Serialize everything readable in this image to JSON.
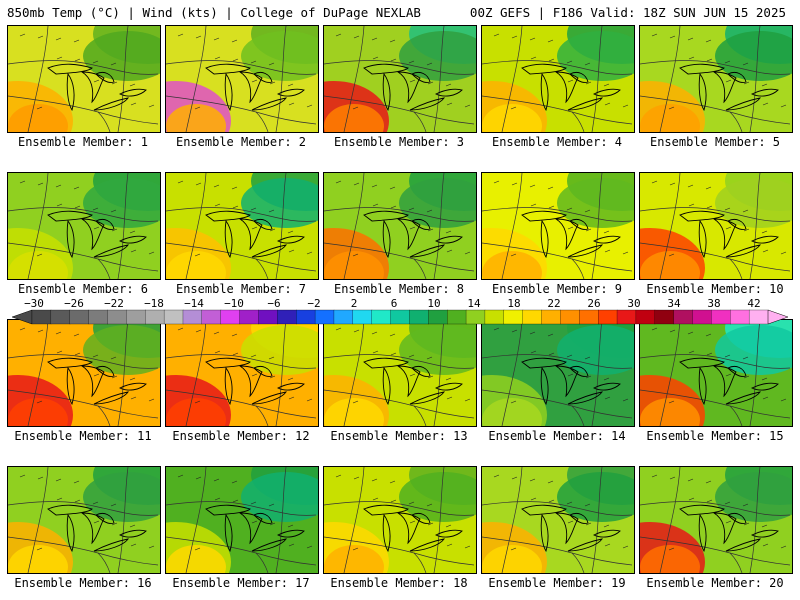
{
  "header": {
    "left": "850mb Temp (°C) | Wind (kts) | College of DuPage NEXLAB",
    "right": "00Z GEFS | F186 Valid: 18Z SUN JUN 15 2025"
  },
  "colorbar": {
    "tick_labels": [
      "−30",
      "−26",
      "−22",
      "−18",
      "−14",
      "−10",
      "−6",
      "−2",
      "2",
      "6",
      "10",
      "14",
      "18",
      "22",
      "26",
      "30",
      "34",
      "38",
      "42"
    ],
    "tick_values": [
      -30,
      -26,
      -22,
      -18,
      -14,
      -10,
      -6,
      -2,
      2,
      6,
      10,
      14,
      18,
      22,
      26,
      30,
      34,
      38,
      42
    ],
    "colors": [
      "#4a4a4a",
      "#5a5a5a",
      "#6b6b6b",
      "#7c7c7c",
      "#8d8d8d",
      "#9e9e9e",
      "#afafaf",
      "#c0c0c0",
      "#b48ed6",
      "#c25fd6",
      "#e040f0",
      "#a020c8",
      "#7010c0",
      "#3020b8",
      "#1840e0",
      "#1470ff",
      "#20a8ff",
      "#20d8f0",
      "#20e8c8",
      "#10c8a0",
      "#10b070",
      "#20a040",
      "#50b020",
      "#90d020",
      "#c8e000",
      "#f0f000",
      "#ffd800",
      "#ffb000",
      "#ff9000",
      "#ff7000",
      "#ff4000",
      "#e81818",
      "#c00010",
      "#900010",
      "#b01060",
      "#d01090",
      "#f030c0",
      "#ff70e0",
      "#ffb0f0"
    ]
  },
  "panels": [
    {
      "label": "Ensemble Member: 1",
      "base": "#d8e020",
      "accents": [
        "#ffb000",
        "#ff9a00",
        "#60b020",
        "#50a820"
      ]
    },
    {
      "label": "Ensemble Member: 2",
      "base": "#d8e020",
      "accents": [
        "#e050c8",
        "#ffb000",
        "#60b020",
        "#70c020"
      ]
    },
    {
      "label": "Ensemble Member: 3",
      "base": "#a0d020",
      "accents": [
        "#e81818",
        "#ff8000",
        "#20c080",
        "#30a040"
      ]
    },
    {
      "label": "Ensemble Member: 4",
      "base": "#c8e000",
      "accents": [
        "#ffb000",
        "#ffd800",
        "#20a040",
        "#30b040"
      ]
    },
    {
      "label": "Ensemble Member: 5",
      "base": "#a8d820",
      "accents": [
        "#ffb000",
        "#ffa000",
        "#10b070",
        "#20a040"
      ]
    },
    {
      "label": "Ensemble Member: 6",
      "base": "#90d020",
      "accents": [
        "#c8e000",
        "#d8e000",
        "#20a040",
        "#30a840"
      ]
    },
    {
      "label": "Ensemble Member: 7",
      "base": "#c8e000",
      "accents": [
        "#ffc000",
        "#ffd800",
        "#20a040",
        "#10b070"
      ]
    },
    {
      "label": "Ensemble Member: 8",
      "base": "#90d020",
      "accents": [
        "#ff7000",
        "#ff9000",
        "#20a040",
        "#30a040"
      ]
    },
    {
      "label": "Ensemble Member: 9",
      "base": "#e8f000",
      "accents": [
        "#ffd800",
        "#ffb000",
        "#50b020",
        "#60b820"
      ]
    },
    {
      "label": "Ensemble Member: 10",
      "base": "#d8e800",
      "accents": [
        "#ff4000",
        "#ff9000",
        "#90d020",
        "#a0d020"
      ]
    },
    {
      "label": "Ensemble Member: 11",
      "base": "#ffb000",
      "accents": [
        "#e81818",
        "#ff4000",
        "#20a040",
        "#60b020"
      ]
    },
    {
      "label": "Ensemble Member: 12",
      "base": "#ffb000",
      "accents": [
        "#e81818",
        "#ff4000",
        "#ffd800",
        "#c8e000"
      ]
    },
    {
      "label": "Ensemble Member: 13",
      "base": "#c8e000",
      "accents": [
        "#ffb000",
        "#ffd800",
        "#50b020",
        "#60b820"
      ]
    },
    {
      "label": "Ensemble Member: 14",
      "base": "#30a040",
      "accents": [
        "#90d020",
        "#a8d820",
        "#20a040",
        "#10b070"
      ]
    },
    {
      "label": "Ensemble Member: 15",
      "base": "#60b820",
      "accents": [
        "#ff4000",
        "#ff9000",
        "#20e8c8",
        "#10c8a0"
      ]
    },
    {
      "label": "Ensemble Member: 16",
      "base": "#90d020",
      "accents": [
        "#ffb000",
        "#ffd800",
        "#20a040",
        "#30a040"
      ]
    },
    {
      "label": "Ensemble Member: 17",
      "base": "#50b020",
      "accents": [
        "#c8e000",
        "#ffd800",
        "#20a040",
        "#10b070"
      ]
    },
    {
      "label": "Ensemble Member: 18",
      "base": "#c8e000",
      "accents": [
        "#ffd800",
        "#ffb000",
        "#60b020",
        "#50b020"
      ]
    },
    {
      "label": "Ensemble Member: 19",
      "base": "#a8d820",
      "accents": [
        "#ffb000",
        "#ffd800",
        "#30a040",
        "#20a040"
      ]
    },
    {
      "label": "Ensemble Member: 20",
      "base": "#90d020",
      "accents": [
        "#e81818",
        "#ff7000",
        "#20a040",
        "#30a040"
      ]
    }
  ]
}
